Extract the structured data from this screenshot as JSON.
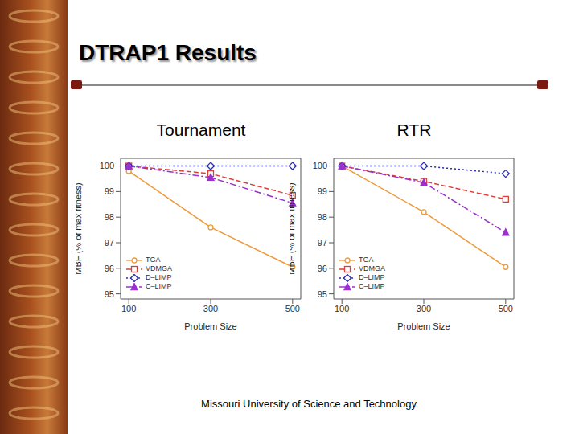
{
  "title": "DTRAP1 Results",
  "footer": "Missouri University of Science and Technology",
  "chart_data": [
    {
      "type": "line",
      "title": "Tournament",
      "xlabel": "Problem Size",
      "ylabel": "MBF (% of max fitness)",
      "x": [
        100,
        300,
        500
      ],
      "xlim": [
        80,
        520
      ],
      "xticks": [
        100,
        300,
        500
      ],
      "ylim": [
        94.8,
        100.3
      ],
      "yticks": [
        95,
        96,
        97,
        98,
        99,
        100
      ],
      "legend": "lower left",
      "series": [
        {
          "name": "TGA",
          "color": "#ee9a3a",
          "marker": "circle",
          "line_style": "solid",
          "values": [
            99.8,
            97.6,
            96.05
          ]
        },
        {
          "name": "VDMGA",
          "color": "#d8403a",
          "marker": "square",
          "line_style": "dashed",
          "values": [
            100,
            99.7,
            98.85
          ]
        },
        {
          "name": "D–LIMP",
          "color": "#2b2bb8",
          "marker": "diamond",
          "line_style": "dotted",
          "values": [
            100,
            100,
            100
          ]
        },
        {
          "name": "C–LIMP",
          "color": "#9b30d0",
          "marker": "triangle",
          "line_style": "dashdot",
          "values": [
            100,
            99.55,
            98.55
          ]
        }
      ]
    },
    {
      "type": "line",
      "title": "RTR",
      "xlabel": "Problem Size",
      "ylabel": "MBF (% of max fitness)",
      "x": [
        100,
        300,
        500
      ],
      "xlim": [
        80,
        520
      ],
      "xticks": [
        100,
        300,
        500
      ],
      "ylim": [
        94.8,
        100.3
      ],
      "yticks": [
        95,
        96,
        97,
        98,
        99,
        100
      ],
      "legend": "lower left",
      "series": [
        {
          "name": "TGA",
          "color": "#ee9a3a",
          "marker": "circle",
          "line_style": "solid",
          "values": [
            100,
            98.2,
            96.05
          ]
        },
        {
          "name": "VDMGA",
          "color": "#d8403a",
          "marker": "square",
          "line_style": "dashed",
          "values": [
            100,
            99.4,
            98.7
          ]
        },
        {
          "name": "D–LIMP",
          "color": "#2b2bb8",
          "marker": "diamond",
          "line_style": "dotted",
          "values": [
            100,
            100,
            99.7
          ]
        },
        {
          "name": "C–LIMP",
          "color": "#9b30d0",
          "marker": "triangle",
          "line_style": "dashdot",
          "values": [
            100,
            99.35,
            97.4
          ]
        }
      ]
    }
  ]
}
